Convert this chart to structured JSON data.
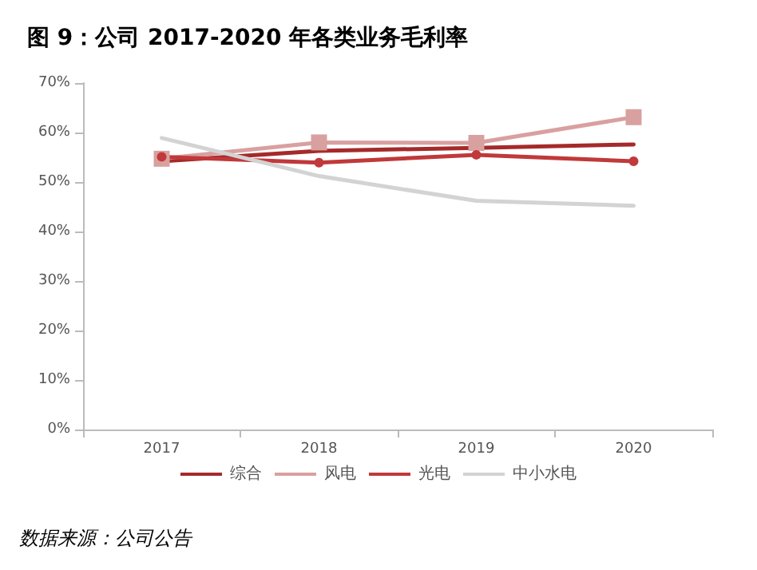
{
  "chart_data": {
    "type": "line",
    "title": "图 9：公司 2017-2020 年各类业务毛利率",
    "categories": [
      "2017",
      "2018",
      "2019",
      "2020"
    ],
    "series": [
      {
        "name": "综合",
        "color": "#a52a2a",
        "marker": "none",
        "values": [
          54.2,
          56.3,
          56.9,
          57.6
        ]
      },
      {
        "name": "风电",
        "color": "#d9a0a0",
        "marker": "square",
        "values": [
          54.7,
          58.0,
          57.9,
          63.1
        ]
      },
      {
        "name": "光电",
        "color": "#c0393b",
        "marker": "circle",
        "values": [
          55.1,
          53.9,
          55.5,
          54.2
        ]
      },
      {
        "name": "中小水电",
        "color": "#d3d3d3",
        "marker": "none",
        "values": [
          58.9,
          51.2,
          46.2,
          45.2
        ]
      }
    ],
    "ylim": [
      0,
      70
    ],
    "yticks": [
      {
        "value": 0,
        "label": "0%"
      },
      {
        "value": 10,
        "label": "10%"
      },
      {
        "value": 20,
        "label": "20%"
      },
      {
        "value": 30,
        "label": "30%"
      },
      {
        "value": 40,
        "label": "40%"
      },
      {
        "value": 50,
        "label": "50%"
      },
      {
        "value": 60,
        "label": "60%"
      },
      {
        "value": 70,
        "label": "70%"
      }
    ],
    "grid": false,
    "legend": "bottom",
    "annotations": [
      "数据来源：公司公告"
    ]
  }
}
